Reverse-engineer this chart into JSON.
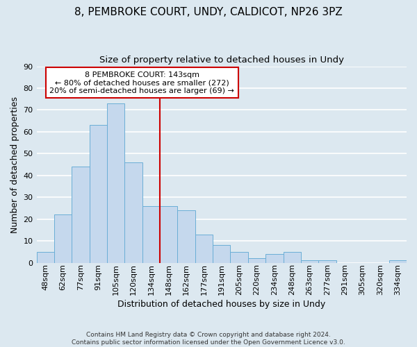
{
  "title": "8, PEMBROKE COURT, UNDY, CALDICOT, NP26 3PZ",
  "subtitle": "Size of property relative to detached houses in Undy",
  "xlabel": "Distribution of detached houses by size in Undy",
  "ylabel": "Number of detached properties",
  "categories": [
    "48sqm",
    "62sqm",
    "77sqm",
    "91sqm",
    "105sqm",
    "120sqm",
    "134sqm",
    "148sqm",
    "162sqm",
    "177sqm",
    "191sqm",
    "205sqm",
    "220sqm",
    "234sqm",
    "248sqm",
    "263sqm",
    "277sqm",
    "291sqm",
    "305sqm",
    "320sqm",
    "334sqm"
  ],
  "values": [
    5,
    22,
    44,
    63,
    73,
    46,
    26,
    26,
    24,
    13,
    8,
    5,
    2,
    4,
    5,
    1,
    1,
    0,
    0,
    0,
    1
  ],
  "bar_color": "#c5d8ed",
  "bar_edge_color": "#6aaed6",
  "vline_color": "#cc0000",
  "annotation_title": "8 PEMBROKE COURT: 143sqm",
  "annotation_line1": "← 80% of detached houses are smaller (272)",
  "annotation_line2": "20% of semi-detached houses are larger (69) →",
  "annotation_box_color": "#cc0000",
  "annotation_box_fill": "#ffffff",
  "ylim": [
    0,
    90
  ],
  "yticks": [
    0,
    10,
    20,
    30,
    40,
    50,
    60,
    70,
    80,
    90
  ],
  "footer_line1": "Contains HM Land Registry data © Crown copyright and database right 2024.",
  "footer_line2": "Contains public sector information licensed under the Open Government Licence v3.0.",
  "background_color": "#dce8f0",
  "grid_color": "#ffffff",
  "title_fontsize": 11,
  "subtitle_fontsize": 9.5,
  "ylabel_fontsize": 9,
  "xlabel_fontsize": 9,
  "tick_fontsize": 8,
  "footer_fontsize": 6.5
}
